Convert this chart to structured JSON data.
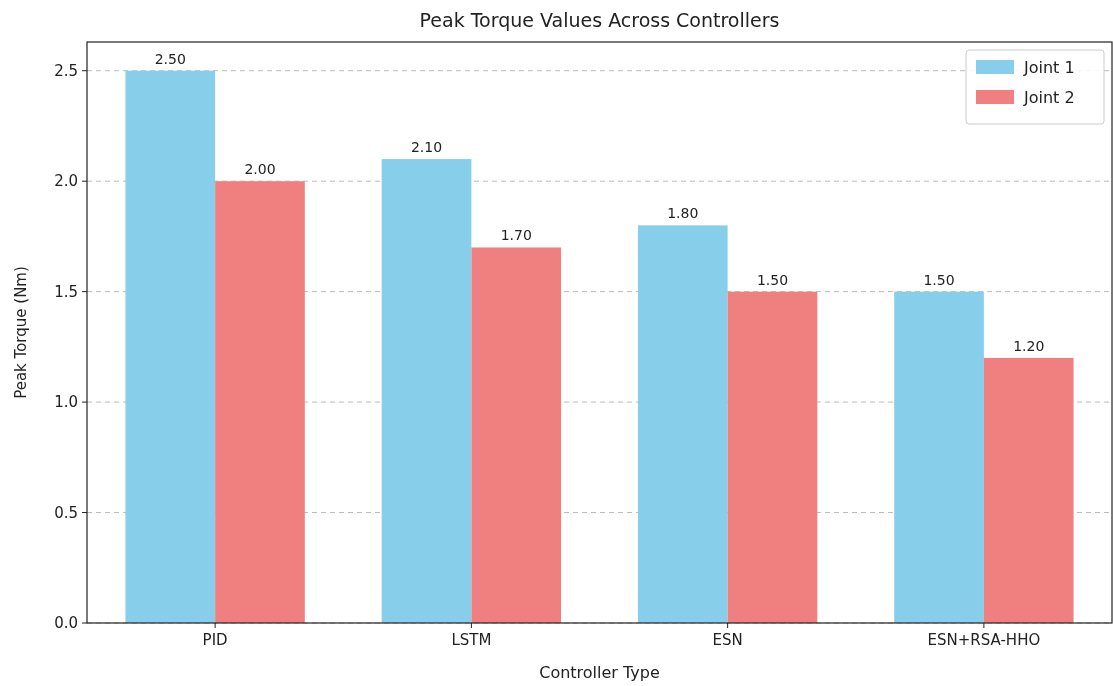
{
  "chart_data": {
    "type": "bar",
    "title": "Peak Torque Values Across Controllers",
    "xlabel": "Controller Type",
    "ylabel": "Peak Torque (Nm)",
    "categories": [
      "PID",
      "LSTM",
      "ESN",
      "ESN+RSA-HHO"
    ],
    "series": [
      {
        "name": "Joint 1",
        "color": "#87ceeb",
        "values": [
          2.5,
          2.1,
          1.8,
          1.5
        ],
        "value_labels": [
          "2.50",
          "2.10",
          "1.80",
          "1.50"
        ]
      },
      {
        "name": "Joint 2",
        "color": "#f08080",
        "values": [
          2.0,
          1.7,
          1.5,
          1.2
        ],
        "value_labels": [
          "2.00",
          "1.70",
          "1.50",
          "1.20"
        ]
      }
    ],
    "ylim": [
      0,
      2.63
    ],
    "yticks": [
      {
        "value": 0,
        "label": "0.0"
      },
      {
        "value": 0.5,
        "label": "0.5"
      },
      {
        "value": 1,
        "label": "1.0"
      },
      {
        "value": 1.5,
        "label": "1.5"
      },
      {
        "value": 2,
        "label": "2.0"
      },
      {
        "value": 2.5,
        "label": "2.5"
      }
    ],
    "grid": "y",
    "legend": "top right"
  }
}
